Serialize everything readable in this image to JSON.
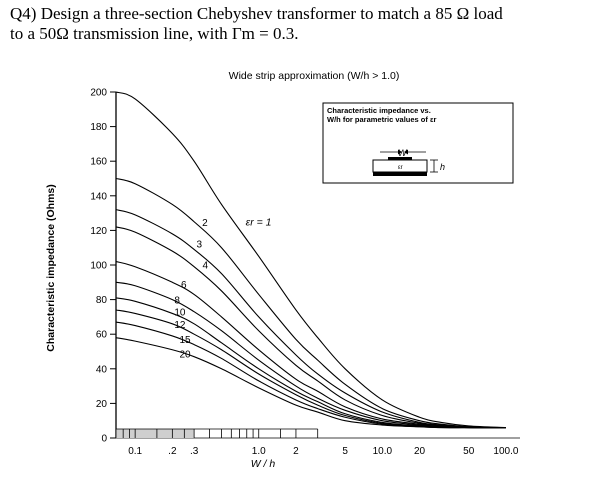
{
  "question": {
    "line1": "Q4) Design a three-section Chebyshev transformer to match a 85 Ω load",
    "line2": "to a 50Ω transmission line, with Γm = 0.3."
  },
  "chart_data": {
    "type": "line",
    "title": "Wide strip approximation (W/h > 1.0)",
    "xlabel": "W / h",
    "ylabel": "Characteristic impedance  (Ohms)",
    "x_scale": "log",
    "xlim": [
      0.07,
      130
    ],
    "ylim": [
      0,
      200
    ],
    "grid": false,
    "x_ticks": [
      0.1,
      0.2,
      0.3,
      1.0,
      2,
      5,
      10,
      20,
      50,
      100
    ],
    "x_tick_labels": [
      "0.1",
      ".2",
      ".3",
      "1.0",
      "2",
      "5",
      "10.0",
      "20",
      "50",
      "100.0"
    ],
    "y_ticks": [
      0,
      20,
      40,
      60,
      80,
      100,
      120,
      140,
      160,
      180,
      200
    ],
    "y_tick_labels": [
      "0",
      "20",
      "40",
      "60",
      "80",
      "100",
      "120",
      "140",
      "160",
      "180",
      "200"
    ],
    "inset": {
      "line1": "Characteristic impedance vs.",
      "line2": "W/h for parametric values of εr",
      "w_label": "W",
      "h_label": "h",
      "er_label": "εr"
    },
    "x": [
      0.07,
      0.1,
      0.2,
      0.3,
      0.5,
      1.0,
      2,
      3,
      5,
      10,
      20,
      30,
      50,
      100
    ],
    "series": [
      {
        "name": "εr = 1",
        "values": [
          200,
          196,
          176,
          160,
          135,
          105,
          74,
          58,
          40,
          22,
          12,
          9,
          7,
          6
        ]
      },
      {
        "name": "2",
        "values": [
          150,
          147,
          135,
          125,
          110,
          83,
          57,
          45,
          31,
          17,
          10,
          8,
          6.5,
          6
        ]
      },
      {
        "name": "3",
        "values": [
          132,
          129,
          118,
          109,
          95,
          70,
          48,
          37,
          26,
          15,
          9,
          7.5,
          6.5,
          6
        ]
      },
      {
        "name": "4",
        "values": [
          122,
          119,
          108,
          99,
          85,
          62,
          42,
          33,
          22,
          13,
          8.5,
          7,
          6,
          6
        ]
      },
      {
        "name": "6",
        "values": [
          102,
          99,
          90,
          83,
          70,
          51,
          34,
          27,
          18,
          11,
          8,
          7,
          6,
          6
        ]
      },
      {
        "name": "8",
        "values": [
          90,
          88,
          80,
          73,
          62,
          45,
          30,
          23,
          16,
          10,
          7.5,
          6.5,
          6,
          6
        ]
      },
      {
        "name": "10",
        "values": [
          81,
          79,
          72,
          66,
          55,
          40,
          27,
          21,
          14,
          9,
          7,
          6.5,
          6,
          6
        ]
      },
      {
        "name": "12",
        "values": [
          74,
          72,
          66,
          60,
          51,
          37,
          25,
          19,
          13,
          8.5,
          7,
          6.5,
          6,
          6
        ]
      },
      {
        "name": "15",
        "values": [
          67,
          65,
          59,
          54,
          46,
          33,
          22,
          17,
          12,
          8,
          6.5,
          6,
          6,
          6
        ]
      },
      {
        "name": "20",
        "values": [
          58,
          56,
          51,
          47,
          40,
          29,
          19,
          15,
          10,
          7.5,
          6.5,
          6,
          6,
          6
        ]
      }
    ]
  }
}
